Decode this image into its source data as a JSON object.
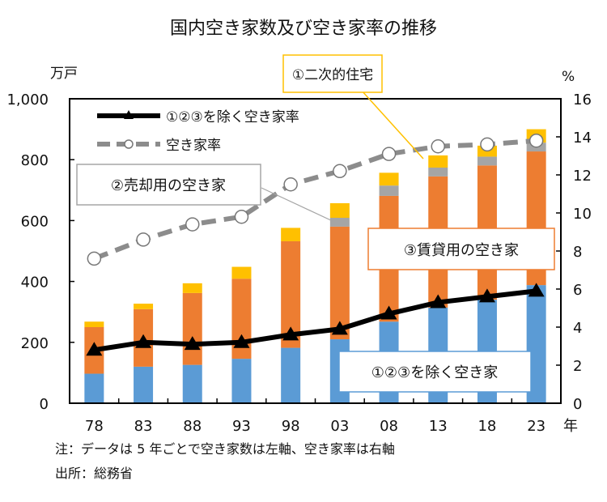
{
  "chart_data": {
    "type": "bar",
    "title": "国内空き家数及び空き家率の推移",
    "left_axis_unit": "万戸",
    "right_axis_unit": "%",
    "x_unit": "年",
    "categories": [
      "78",
      "83",
      "88",
      "93",
      "98",
      "03",
      "08",
      "13",
      "18",
      "23"
    ],
    "left_ylim": [
      0,
      1000
    ],
    "left_ticks": [
      "0",
      "200",
      "400",
      "600",
      "800",
      "1,000"
    ],
    "left_tick_values": [
      0,
      200,
      400,
      600,
      800,
      1000
    ],
    "right_ylim": [
      0,
      16
    ],
    "right_ticks": [
      "0",
      "2",
      "4",
      "6",
      "8",
      "10",
      "12",
      "14",
      "16"
    ],
    "right_tick_values": [
      0,
      2,
      4,
      6,
      8,
      10,
      12,
      14,
      16
    ],
    "stacked_series": [
      {
        "name": "①②③を除く空き家",
        "color": "#5b9bd5",
        "values": [
          97,
          120,
          126,
          146,
          182,
          210,
          268,
          314,
          340,
          388
        ]
      },
      {
        "name": "③賃貸用の空き家",
        "color": "#ed7d31",
        "values": [
          153,
          189,
          236,
          263,
          350,
          370,
          413,
          431,
          441,
          439
        ]
      },
      {
        "name": "②売却用の空き家",
        "color": "#a5a5a5",
        "values": [
          0,
          0,
          0,
          0,
          0,
          29,
          34,
          29,
          29,
          29
        ]
      },
      {
        "name": "①二次的住宅",
        "color": "#ffc000",
        "values": [
          18,
          18,
          32,
          39,
          44,
          48,
          42,
          40,
          36,
          44
        ]
      }
    ],
    "line_series": [
      {
        "name": "①②③を除く空き家率",
        "color": "#000000",
        "marker": "triangle",
        "values": [
          2.8,
          3.2,
          3.1,
          3.2,
          3.6,
          3.9,
          4.7,
          5.3,
          5.6,
          5.9
        ]
      },
      {
        "name": "空き家率",
        "color": "#8c8c8c",
        "marker": "circle",
        "dash": true,
        "values": [
          7.6,
          8.6,
          9.4,
          9.8,
          11.5,
          12.2,
          13.1,
          13.5,
          13.6,
          13.8
        ]
      }
    ],
    "legend": [
      "①②③を除く空き家率",
      "空き家率"
    ],
    "legend_position": "top-left",
    "notes": [
      "注：データは 5 年ごとで空き家数は左軸、空き家率は右軸",
      "出所：総務省"
    ]
  }
}
